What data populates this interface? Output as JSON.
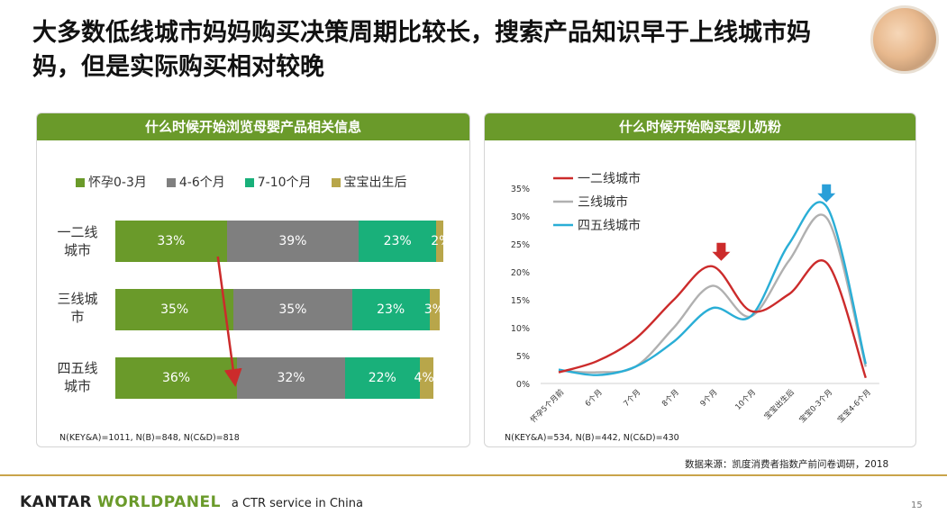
{
  "title": "大多数低线城市妈妈购买决策周期比较长，搜索产品知识早于上线城市妈妈，但是实际购买相对较晚",
  "photo_alt": "mother-baby-photo",
  "left_panel": {
    "header": "什么时候开始浏览母婴产品相关信息",
    "note": "N(KEY&A)=1011, N(B)=848, N(C&D)=818"
  },
  "right_panel": {
    "header": "什么时候开始购买婴儿奶粉",
    "note": "N(KEY&A)=534, N(B)=442, N(C&D)=430"
  },
  "source": "数据来源：凯度消费者指数产前问卷调研，2018",
  "brand": {
    "kantar": "KANTAR",
    "worldpanel": "WORLDPANEL",
    "tagline": "a CTR service in China"
  },
  "page_number": "15",
  "colors": {
    "green": "#6a9a2a",
    "gray": "#7f7f7f",
    "teal": "#19b07a",
    "gold": "#b8a64a",
    "red": "#cc2b2b",
    "silver": "#b0b0b0",
    "blue": "#2aaed6",
    "arrow_red": "#cc2b2b",
    "arrow_blue": "#2a9fd8"
  },
  "chart_data": [
    {
      "type": "bar",
      "orientation": "horizontal-stacked",
      "legend_position": "top",
      "categories": [
        "一二线城市",
        "三线城市",
        "四五线城市"
      ],
      "category_labels": [
        [
          "一二线",
          "城市"
        ],
        [
          "三线城",
          "市"
        ],
        [
          "四五线",
          "城市"
        ]
      ],
      "series": [
        {
          "name": "怀孕0-3月",
          "values": [
            33,
            35,
            36
          ],
          "labels": [
            "33%",
            "35%",
            "36%"
          ]
        },
        {
          "name": "4-6个月",
          "values": [
            39,
            35,
            32
          ],
          "labels": [
            "39%",
            "35%",
            "32%"
          ]
        },
        {
          "name": "7-10个月",
          "values": [
            23,
            23,
            22
          ],
          "labels": [
            "23%",
            "23%",
            "22%"
          ]
        },
        {
          "name": "宝宝出生后",
          "values": [
            2,
            3,
            4
          ],
          "labels": [
            "2%",
            "3%",
            "4%"
          ]
        }
      ],
      "annotations": [
        "red arrow from 一二线城市 first segment end to 四五线城市 first segment end"
      ]
    },
    {
      "type": "line",
      "legend_position": "top-left",
      "x": [
        "怀孕5个月前",
        "6个月",
        "7个月",
        "8个月",
        "9个月",
        "10个月",
        "宝宝出生后",
        "宝宝0-3个月",
        "宝宝4-6个月"
      ],
      "ylim": [
        0,
        35
      ],
      "yticks": [
        "0%",
        "5%",
        "10%",
        "15%",
        "20%",
        "25%",
        "30%",
        "35%"
      ],
      "series": [
        {
          "name": "一二线城市",
          "values": [
            2,
            4,
            8,
            15,
            21,
            13,
            16,
            21.5,
            1
          ]
        },
        {
          "name": "三线城市",
          "values": [
            2.3,
            2,
            3,
            10,
            17.5,
            12,
            22,
            29.5,
            3
          ]
        },
        {
          "name": "四五线城市",
          "values": [
            2.5,
            1.5,
            3,
            7.5,
            13.5,
            12,
            25,
            31.5,
            3.5
          ]
        }
      ],
      "annotations": [
        "red down-arrow at 9个月 peak",
        "blue down-arrow at 宝宝0-3个月 peak"
      ]
    }
  ]
}
